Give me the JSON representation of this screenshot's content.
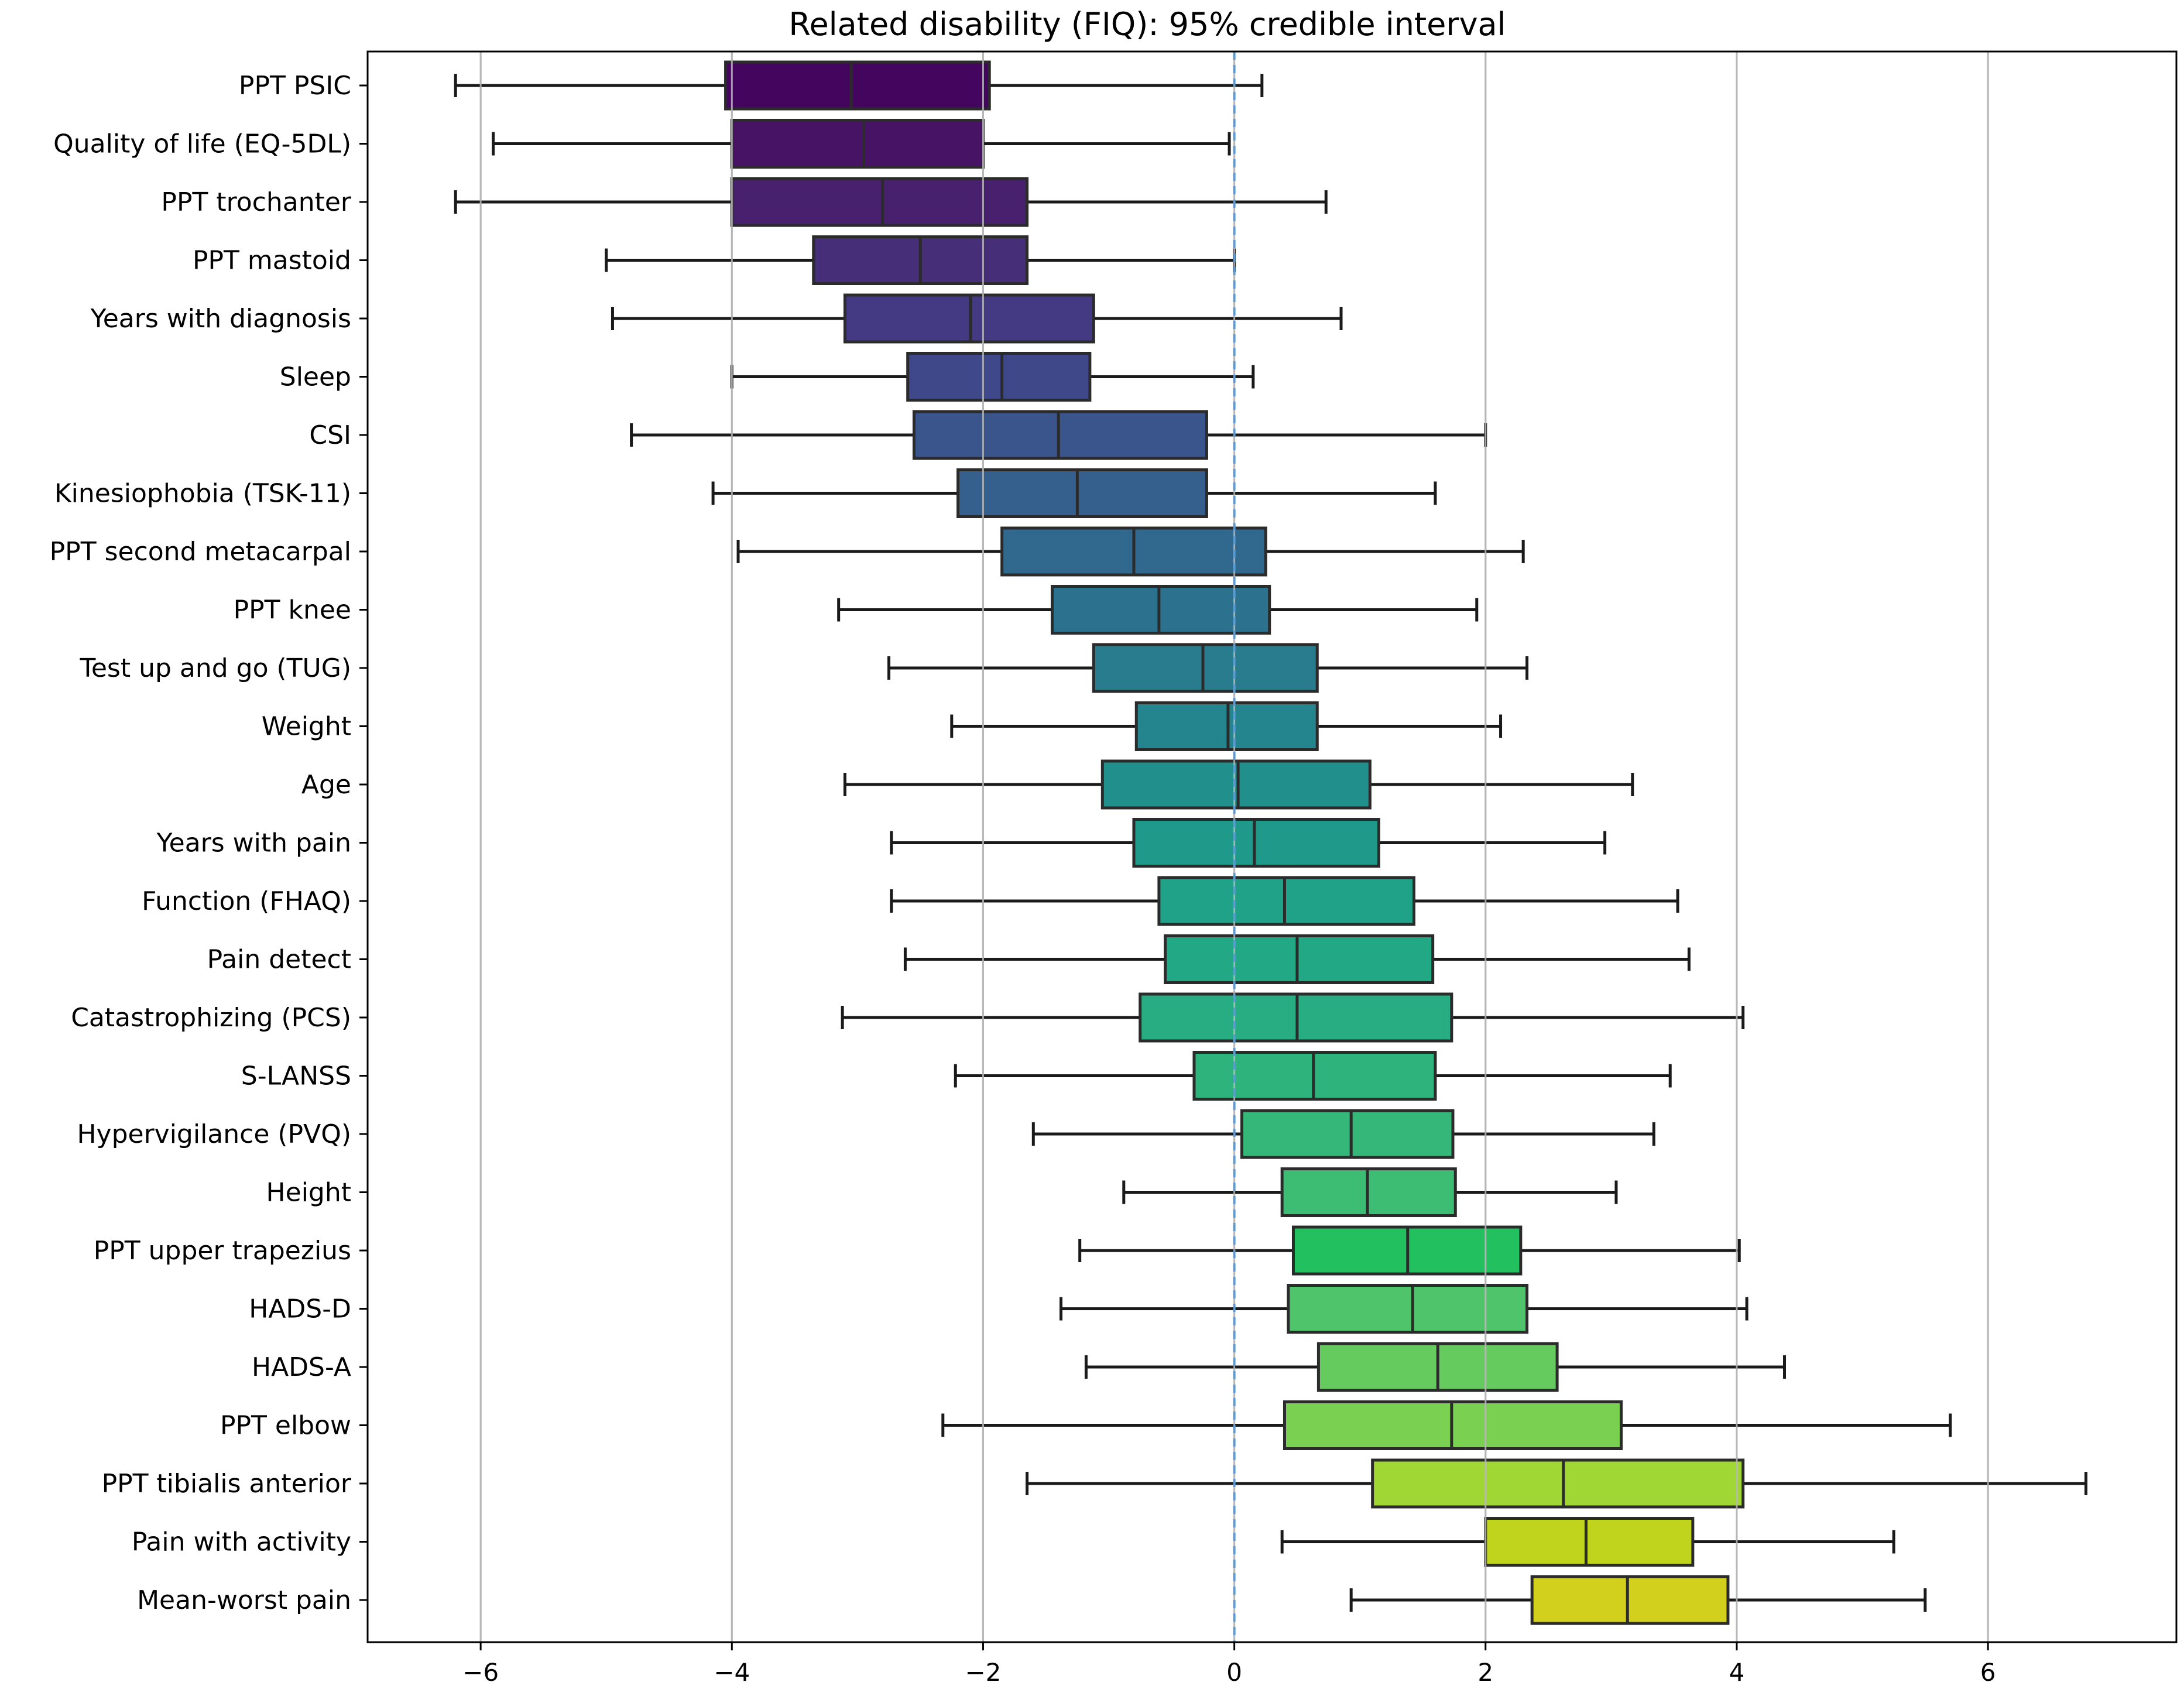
{
  "chart_data": {
    "type": "boxplot",
    "title": "Related disability (FIQ): 95% credible interval",
    "xlabel": "",
    "ylabel": "",
    "xlim": [
      -6.9,
      7.5
    ],
    "xticks": [
      -6,
      -4,
      -2,
      0,
      2,
      4,
      6
    ],
    "xtick_labels": [
      "−6",
      "−4",
      "−2",
      "0",
      "2",
      "4",
      "6"
    ],
    "grid": "vertical",
    "reference_line": 0,
    "reference_line_color": "#5b9bd5",
    "series": [
      {
        "name": "PPT PSIC",
        "low": -6.2,
        "q1": -4.05,
        "median": -3.05,
        "q3": -1.95,
        "high": 0.22,
        "color": "#44055f"
      },
      {
        "name": "Quality of life (EQ-5DL)",
        "low": -5.9,
        "q1": -4.0,
        "median": -2.95,
        "q3": -2.0,
        "high": -0.04,
        "color": "#471365"
      },
      {
        "name": "PPT trochanter",
        "low": -6.2,
        "q1": -4.0,
        "median": -2.8,
        "q3": -1.65,
        "high": 0.73,
        "color": "#48216e"
      },
      {
        "name": "PPT mastoid",
        "low": -5.0,
        "q1": -3.35,
        "median": -2.5,
        "q3": -1.65,
        "high": 0.0,
        "color": "#462e78"
      },
      {
        "name": "Years with diagnosis",
        "low": -4.95,
        "q1": -3.1,
        "median": -2.1,
        "q3": -1.12,
        "high": 0.85,
        "color": "#443a83"
      },
      {
        "name": "Sleep",
        "low": -4.0,
        "q1": -2.6,
        "median": -1.85,
        "q3": -1.15,
        "high": 0.15,
        "color": "#3f4889"
      },
      {
        "name": "CSI",
        "low": -4.8,
        "q1": -2.55,
        "median": -1.4,
        "q3": -0.22,
        "high": 2.0,
        "color": "#3a548c"
      },
      {
        "name": "Kinesiophobia (TSK-11)",
        "low": -4.15,
        "q1": -2.2,
        "median": -1.25,
        "q3": -0.22,
        "high": 1.6,
        "color": "#355f8d"
      },
      {
        "name": "PPT second metacarpal",
        "low": -3.95,
        "q1": -1.85,
        "median": -0.8,
        "q3": 0.25,
        "high": 2.3,
        "color": "#31688e"
      },
      {
        "name": "PPT knee",
        "low": -3.15,
        "q1": -1.45,
        "median": -0.6,
        "q3": 0.28,
        "high": 1.93,
        "color": "#2c728e"
      },
      {
        "name": "Test up and go (TUG)",
        "low": -2.75,
        "q1": -1.12,
        "median": -0.25,
        "q3": 0.66,
        "high": 2.33,
        "color": "#287c8e"
      },
      {
        "name": "Weight",
        "low": -2.25,
        "q1": -0.78,
        "median": -0.05,
        "q3": 0.66,
        "high": 2.12,
        "color": "#24858e"
      },
      {
        "name": "Age",
        "low": -3.1,
        "q1": -1.05,
        "median": 0.03,
        "q3": 1.08,
        "high": 3.17,
        "color": "#21908d"
      },
      {
        "name": "Years with pain",
        "low": -2.73,
        "q1": -0.8,
        "median": 0.16,
        "q3": 1.15,
        "high": 2.95,
        "color": "#1f998a"
      },
      {
        "name": "Function (FHAQ)",
        "low": -2.73,
        "q1": -0.6,
        "median": 0.4,
        "q3": 1.43,
        "high": 3.53,
        "color": "#1fa287"
      },
      {
        "name": "Pain detect",
        "low": -2.62,
        "q1": -0.55,
        "median": 0.5,
        "q3": 1.58,
        "high": 3.62,
        "color": "#22a884"
      },
      {
        "name": "Catastrophizing (PCS)",
        "low": -3.12,
        "q1": -0.75,
        "median": 0.5,
        "q3": 1.73,
        "high": 4.05,
        "color": "#27ad81"
      },
      {
        "name": "S-LANSS",
        "low": -2.22,
        "q1": -0.32,
        "median": 0.63,
        "q3": 1.6,
        "high": 3.47,
        "color": "#2eb37c"
      },
      {
        "name": "Hypervigilance (PVQ)",
        "low": -1.6,
        "q1": 0.06,
        "median": 0.93,
        "q3": 1.74,
        "high": 3.34,
        "color": "#35b779"
      },
      {
        "name": "Height",
        "low": -0.88,
        "q1": 0.38,
        "median": 1.06,
        "q3": 1.76,
        "high": 3.04,
        "color": "#3dbc74"
      },
      {
        "name": "PPT upper trapezius",
        "low": -1.23,
        "q1": 0.47,
        "median": 1.38,
        "q3": 2.28,
        "high": 4.02,
        "color": "#22c05e"
      },
      {
        "name": "HADS-D",
        "low": -1.38,
        "q1": 0.43,
        "median": 1.42,
        "q3": 2.33,
        "high": 4.08,
        "color": "#50c46a"
      },
      {
        "name": "HADS-A",
        "low": -1.18,
        "q1": 0.67,
        "median": 1.62,
        "q3": 2.57,
        "high": 4.38,
        "color": "#65cb5e"
      },
      {
        "name": "PPT elbow",
        "low": -2.32,
        "q1": 0.4,
        "median": 1.73,
        "q3": 3.08,
        "high": 5.7,
        "color": "#7ad151"
      },
      {
        "name": "PPT tibialis anterior",
        "low": -1.65,
        "q1": 1.1,
        "median": 2.62,
        "q3": 4.05,
        "high": 6.78,
        "color": "#a0d735"
      },
      {
        "name": "Pain with activity",
        "low": 0.38,
        "q1": 2.0,
        "median": 2.8,
        "q3": 3.65,
        "high": 5.25,
        "color": "#c0d41e"
      },
      {
        "name": "Mean-worst pain",
        "low": 0.93,
        "q1": 2.37,
        "median": 3.13,
        "q3": 3.93,
        "high": 5.5,
        "color": "#d2d01c"
      }
    ]
  }
}
